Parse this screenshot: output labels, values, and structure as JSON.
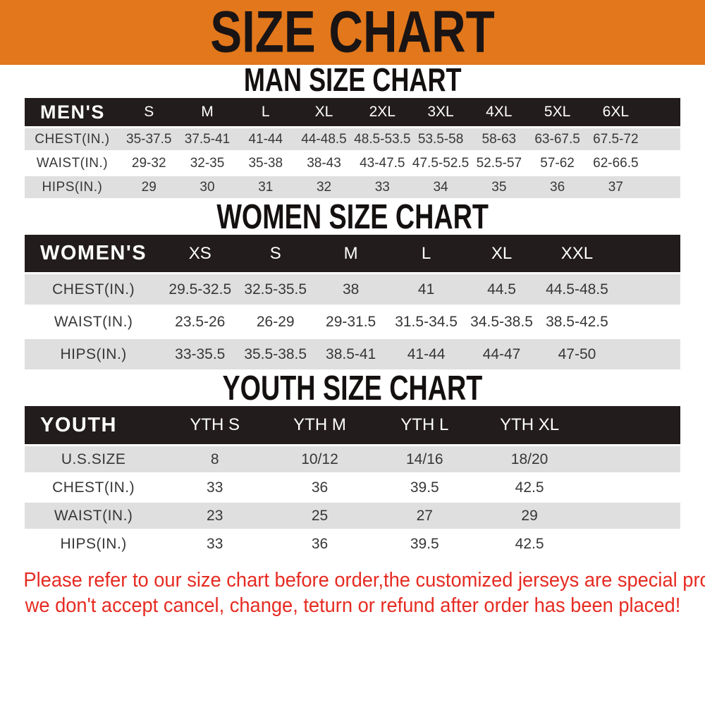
{
  "banner": {
    "title": "SIZE CHART"
  },
  "colors": {
    "banner_bg": "#E2771B",
    "table_header_bg": "#221C1C",
    "row_stripe": "#DFDFDF",
    "note_text": "#E62B22"
  },
  "chart_data": [
    {
      "type": "table",
      "title": "MAN SIZE CHART",
      "header_label": "MEN'S",
      "columns": [
        "S",
        "M",
        "L",
        "XL",
        "2XL",
        "3XL",
        "4XL",
        "5XL",
        "6XL"
      ],
      "rows": [
        {
          "label": "CHEST(IN.)",
          "values": [
            "35-37.5",
            "37.5-41",
            "41-44",
            "44-48.5",
            "48.5-53.5",
            "53.5-58",
            "58-63",
            "63-67.5",
            "67.5-72"
          ]
        },
        {
          "label": "WAIST(IN.)",
          "values": [
            "29-32",
            "32-35",
            "35-38",
            "38-43",
            "43-47.5",
            "47.5-52.5",
            "52.5-57",
            "57-62",
            "62-66.5"
          ]
        },
        {
          "label": "HIPS(IN.)",
          "values": [
            "29",
            "30",
            "31",
            "32",
            "33",
            "34",
            "35",
            "36",
            "37"
          ]
        }
      ]
    },
    {
      "type": "table",
      "title": "WOMEN SIZE CHART",
      "header_label": "WOMEN'S",
      "columns": [
        "XS",
        "S",
        "M",
        "L",
        "XL",
        "XXL"
      ],
      "rows": [
        {
          "label": "CHEST(IN.)",
          "values": [
            "29.5-32.5",
            "32.5-35.5",
            "38",
            "41",
            "44.5",
            "44.5-48.5"
          ]
        },
        {
          "label": "WAIST(IN.)",
          "values": [
            "23.5-26",
            "26-29",
            "29-31.5",
            "31.5-34.5",
            "34.5-38.5",
            "38.5-42.5"
          ]
        },
        {
          "label": "HIPS(IN.)",
          "values": [
            "33-35.5",
            "35.5-38.5",
            "38.5-41",
            "41-44",
            "44-47",
            "47-50"
          ]
        }
      ]
    },
    {
      "type": "table",
      "title": "YOUTH SIZE CHART",
      "header_label": "YOUTH",
      "columns": [
        "YTH S",
        "YTH M",
        "YTH L",
        "YTH XL"
      ],
      "rows": [
        {
          "label": "U.S.SIZE",
          "values": [
            "8",
            "10/12",
            "14/16",
            "18/20"
          ]
        },
        {
          "label": "CHEST(IN.)",
          "values": [
            "33",
            "36",
            "39.5",
            "42.5"
          ]
        },
        {
          "label": "WAIST(IN.)",
          "values": [
            "23",
            "25",
            "27",
            "29"
          ]
        },
        {
          "label": "HIPS(IN.)",
          "values": [
            "33",
            "36",
            "39.5",
            "42.5"
          ]
        }
      ]
    }
  ],
  "footer_note": {
    "line1": "Please refer to our size chart before order,the customized jerseys are special products,",
    "line2": "we don't accept cancel, change, teturn or refund after order has been placed!"
  }
}
